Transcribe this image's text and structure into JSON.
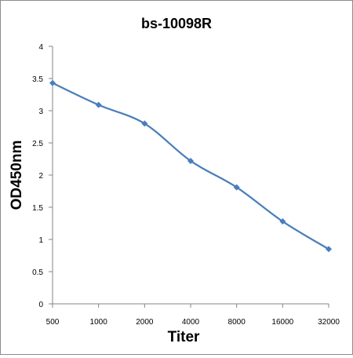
{
  "chart_data": {
    "type": "line",
    "title": "bs-10098R",
    "xlabel": "Titer",
    "ylabel": "OD450nm",
    "categories": [
      "500",
      "1000",
      "2000",
      "4000",
      "8000",
      "16000",
      "32000"
    ],
    "series": [
      {
        "values": [
          3.43,
          3.09,
          2.8,
          2.22,
          1.81,
          1.28,
          0.85
        ]
      }
    ],
    "ylim": [
      0,
      4
    ],
    "yticks": [
      "0",
      "0.5",
      "1",
      "1.5",
      "2",
      "2.5",
      "3",
      "3.5",
      "4"
    ],
    "grid": false,
    "legend": "none",
    "colors": {
      "line": "#4a7ebb",
      "marker": "#4a7ebb",
      "axis": "#868686"
    }
  }
}
